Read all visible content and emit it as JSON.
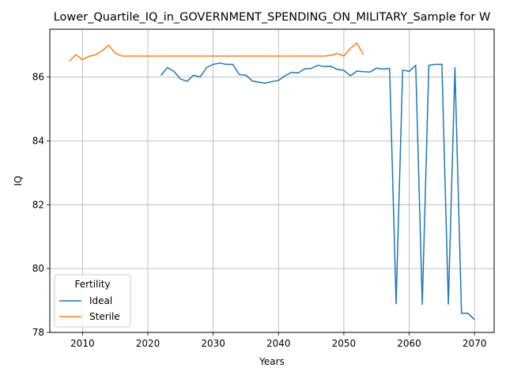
{
  "chart_data": {
    "type": "line",
    "title": "Lower_Quartile_IQ_in_GOVERNMENT_SPENDING_ON_MILITARY_Sample for W",
    "xlabel": "Years",
    "ylabel": "IQ",
    "xlim": [
      2005,
      2073
    ],
    "ylim": [
      78.0,
      87.5
    ],
    "xticks": [
      2010,
      2020,
      2030,
      2040,
      2050,
      2060,
      2070
    ],
    "yticks": [
      78,
      80,
      82,
      84,
      86
    ],
    "grid": true,
    "legend": {
      "title": "Fertility",
      "placement": "lower-left"
    },
    "series": [
      {
        "name": "Ideal",
        "color": "#1f77b4",
        "x": [
          2022,
          2023,
          2024,
          2025,
          2026,
          2027,
          2028,
          2029,
          2030,
          2031,
          2032,
          2033,
          2034,
          2035,
          2036,
          2037,
          2038,
          2039,
          2040,
          2041,
          2042,
          2043,
          2044,
          2045,
          2046,
          2047,
          2048,
          2049,
          2050,
          2051,
          2052,
          2053,
          2054,
          2055,
          2056,
          2057,
          2058,
          2059,
          2060,
          2061,
          2062,
          2063,
          2064,
          2065,
          2066,
          2067,
          2068,
          2069,
          2070
        ],
        "values": [
          86.05,
          86.3,
          86.18,
          85.94,
          85.87,
          86.06,
          86.0,
          86.3,
          86.4,
          86.44,
          86.4,
          86.4,
          86.08,
          86.06,
          85.88,
          85.84,
          85.81,
          85.86,
          85.9,
          86.04,
          86.15,
          86.13,
          86.26,
          86.27,
          86.37,
          86.33,
          86.34,
          86.24,
          86.21,
          86.04,
          86.19,
          86.17,
          86.16,
          86.28,
          86.25,
          86.27,
          78.9,
          86.22,
          86.18,
          86.37,
          78.88,
          86.37,
          86.4,
          86.4,
          78.88,
          86.29,
          78.6,
          78.6,
          78.4
        ]
      },
      {
        "name": "Sterile",
        "color": "#ff7f0e",
        "x": [
          2008,
          2009,
          2010,
          2011,
          2012,
          2013,
          2014,
          2015,
          2016,
          2017,
          2018,
          2019,
          2020,
          2021,
          2022,
          2023,
          2024,
          2025,
          2026,
          2027,
          2028,
          2029,
          2030,
          2031,
          2032,
          2033,
          2034,
          2035,
          2036,
          2037,
          2038,
          2039,
          2040,
          2041,
          2042,
          2043,
          2044,
          2045,
          2046,
          2047,
          2048,
          2049,
          2050,
          2051,
          2052,
          2053
        ],
        "values": [
          86.5,
          86.7,
          86.55,
          86.65,
          86.7,
          86.82,
          87.0,
          86.75,
          86.66,
          86.66,
          86.66,
          86.66,
          86.66,
          86.66,
          86.66,
          86.66,
          86.66,
          86.66,
          86.66,
          86.66,
          86.66,
          86.66,
          86.66,
          86.66,
          86.66,
          86.66,
          86.66,
          86.66,
          86.66,
          86.66,
          86.66,
          86.66,
          86.66,
          86.66,
          86.66,
          86.66,
          86.66,
          86.66,
          86.66,
          86.66,
          86.68,
          86.74,
          86.66,
          86.9,
          87.07,
          86.7
        ]
      }
    ]
  }
}
